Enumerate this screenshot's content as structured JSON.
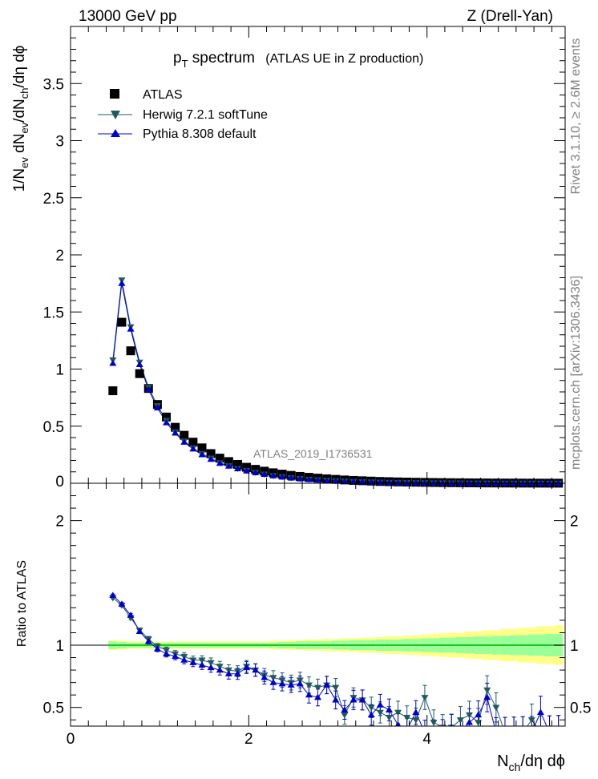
{
  "header": {
    "left": "13000 GeV pp",
    "right": "Z (Drell-Yan)"
  },
  "side_text": {
    "rivet": "Rivet 3.1.10, ≥ 2.6M events",
    "mcplots": "mcplots.cern.ch [arXiv:1306.3436]"
  },
  "chart_data": [
    {
      "type": "scatter",
      "title_main": "p",
      "title_sub": "T",
      "title_rest": " spectrum",
      "title_paren": "(ATLAS UE in Z production)",
      "watermark": "ATLAS_2019_I1736531",
      "ylabel_parts": [
        "1/N",
        "ev",
        " dN",
        "ev",
        "/dN",
        "ch",
        "/dη dϕ"
      ],
      "xlim": [
        0,
        5.55
      ],
      "ylim": [
        0,
        4.0
      ],
      "yticks": [
        0.5,
        1,
        1.5,
        2,
        2.5,
        3,
        3.5
      ],
      "ytick_labels": [
        "0.5",
        "1",
        "1.5",
        "2",
        "2.5",
        "3",
        "3.5"
      ],
      "ylabel_zero": "0",
      "legend": {
        "placement": "top-left",
        "entries": [
          "ATLAS",
          "Herwig 7.2.1 softTune",
          "Pythia 8.308 default"
        ]
      },
      "x": [
        0.475,
        0.575,
        0.675,
        0.775,
        0.875,
        0.975,
        1.075,
        1.175,
        1.275,
        1.375,
        1.475,
        1.575,
        1.675,
        1.775,
        1.875,
        1.975,
        2.075,
        2.175,
        2.275,
        2.375,
        2.475,
        2.575,
        2.675,
        2.775,
        2.875,
        2.975,
        3.075,
        3.175,
        3.275,
        3.375,
        3.475,
        3.575,
        3.675,
        3.775,
        3.875,
        3.975,
        4.075,
        4.175,
        4.275,
        4.375,
        4.475,
        4.575,
        4.675,
        4.775,
        4.875,
        4.975,
        5.075,
        5.175,
        5.275,
        5.375,
        5.475
      ],
      "series": [
        {
          "name": "ATLAS",
          "color": "#000000",
          "marker": "square",
          "values": [
            0.81,
            1.41,
            1.16,
            0.96,
            0.83,
            0.69,
            0.58,
            0.49,
            0.42,
            0.36,
            0.31,
            0.26,
            0.22,
            0.19,
            0.165,
            0.14,
            0.122,
            0.106,
            0.092,
            0.08,
            0.069,
            0.06,
            0.052,
            0.045,
            0.039,
            0.034,
            0.029,
            0.025,
            0.022,
            0.019,
            0.016,
            0.014,
            0.012,
            0.0105,
            0.009,
            0.0078,
            0.0067,
            0.0058,
            0.005,
            0.0043,
            0.0037,
            0.0032,
            0.0027,
            0.0023,
            0.002,
            0.0017,
            0.0015,
            0.0013,
            0.0011,
            0.0009,
            0.0008
          ]
        },
        {
          "name": "Herwig 7.2.1 softTune",
          "color": "#1f5a5e",
          "marker": "triangle-down",
          "values": [
            1.08,
            1.78,
            1.37,
            1.06,
            0.84,
            0.68,
            0.55,
            0.45,
            0.37,
            0.31,
            0.26,
            0.22,
            0.18,
            0.155,
            0.13,
            0.112,
            0.095,
            0.08,
            0.067,
            0.057,
            0.048,
            0.041,
            0.035,
            0.03,
            0.026,
            0.022,
            0.019,
            0.016,
            0.013,
            0.011,
            0.0095,
            0.008,
            0.0068,
            0.0057,
            0.0048,
            0.004,
            0.0034,
            0.0029,
            0.0025,
            0.0021,
            0.0018,
            0.0015,
            0.0013,
            0.0011,
            0.0009,
            0.0008,
            0.0007,
            0.0006,
            0.0005,
            0.0004,
            0.0004
          ]
        },
        {
          "name": "Pythia 8.308 default",
          "color": "#0000cc",
          "marker": "triangle-up",
          "values": [
            1.05,
            1.75,
            1.35,
            1.04,
            0.82,
            0.66,
            0.53,
            0.44,
            0.36,
            0.3,
            0.25,
            0.21,
            0.175,
            0.15,
            0.127,
            0.108,
            0.092,
            0.078,
            0.065,
            0.055,
            0.046,
            0.039,
            0.033,
            0.028,
            0.024,
            0.02,
            0.017,
            0.014,
            0.012,
            0.01,
            0.0085,
            0.0072,
            0.006,
            0.005,
            0.0042,
            0.0036,
            0.003,
            0.0025,
            0.0021,
            0.0018,
            0.0015,
            0.0013,
            0.0011,
            0.0009,
            0.0008,
            0.0007,
            0.0006,
            0.0005,
            0.0004,
            0.0004,
            0.0003
          ]
        }
      ]
    },
    {
      "type": "scatter",
      "ylabel": "Ratio to ATLAS",
      "xlabel_parts": [
        "N",
        "ch",
        "/dη dϕ"
      ],
      "xlim": [
        0,
        5.55
      ],
      "ylim": [
        0.35,
        2.3
      ],
      "xticks": [
        0,
        2,
        4
      ],
      "xtick_labels": [
        "0",
        "2",
        "4"
      ],
      "yticks": [
        0.5,
        1,
        2
      ],
      "ytick_labels": [
        "0.5",
        "1",
        "2"
      ],
      "band_colors": {
        "inner": "#99ff99",
        "outer": "#ffff88",
        "line": "#00aa00"
      },
      "uncertainty_inner": [
        0.03,
        0.025,
        0.02,
        0.02,
        0.02,
        0.02,
        0.02,
        0.02,
        0.02,
        0.02,
        0.02,
        0.02,
        0.02,
        0.02,
        0.02,
        0.02,
        0.02,
        0.02,
        0.02,
        0.025,
        0.025,
        0.03,
        0.03,
        0.03,
        0.03,
        0.035,
        0.035,
        0.04,
        0.04,
        0.04,
        0.045,
        0.045,
        0.045,
        0.05,
        0.05,
        0.055,
        0.055,
        0.06,
        0.06,
        0.065,
        0.065,
        0.07,
        0.07,
        0.075,
        0.075,
        0.08,
        0.08,
        0.085,
        0.085,
        0.09,
        0.09
      ],
      "uncertainty_outer": [
        0.04,
        0.035,
        0.03,
        0.03,
        0.03,
        0.03,
        0.03,
        0.03,
        0.03,
        0.03,
        0.03,
        0.03,
        0.03,
        0.03,
        0.03,
        0.03,
        0.03,
        0.03,
        0.035,
        0.035,
        0.04,
        0.04,
        0.045,
        0.045,
        0.05,
        0.05,
        0.055,
        0.055,
        0.06,
        0.06,
        0.065,
        0.07,
        0.07,
        0.075,
        0.08,
        0.085,
        0.09,
        0.095,
        0.1,
        0.1,
        0.11,
        0.11,
        0.12,
        0.12,
        0.13,
        0.13,
        0.14,
        0.14,
        0.15,
        0.15,
        0.16
      ],
      "series": [
        {
          "name": "Herwig 7.2.1 softTune",
          "color": "#1f5a5e",
          "marker": "triangle-down",
          "values": [
            1.38,
            1.32,
            1.22,
            1.12,
            1.05,
            0.99,
            0.96,
            0.93,
            0.91,
            0.88,
            0.88,
            0.86,
            0.83,
            0.8,
            0.79,
            0.83,
            0.8,
            0.76,
            0.74,
            0.72,
            0.7,
            0.72,
            0.68,
            0.66,
            0.68,
            0.66,
            0.44,
            0.58,
            0.56,
            0.5,
            0.46,
            0.42,
            0.46,
            0.42,
            0.4,
            0.58,
            0.38,
            0.34,
            0.34,
            0.4,
            0.44,
            0.38,
            0.64,
            0.5,
            0.3,
            0.3,
            0.3,
            0.4,
            0.3,
            0.3,
            0.3
          ]
        },
        {
          "name": "Pythia 8.308 default",
          "color": "#0000cc",
          "marker": "triangle-up",
          "values": [
            1.4,
            1.33,
            1.24,
            1.11,
            1.03,
            0.97,
            0.93,
            0.91,
            0.88,
            0.86,
            0.84,
            0.82,
            0.8,
            0.77,
            0.77,
            0.82,
            0.8,
            0.74,
            0.7,
            0.69,
            0.68,
            0.69,
            0.6,
            0.58,
            0.68,
            0.56,
            0.48,
            0.56,
            0.56,
            0.44,
            0.52,
            0.48,
            0.36,
            0.32,
            0.46,
            0.3,
            0.3,
            0.3,
            0.34,
            0.3,
            0.38,
            0.44,
            0.58,
            0.3,
            0.3,
            0.3,
            0.3,
            0.3,
            0.46,
            0.3,
            0.3
          ]
        }
      ]
    }
  ]
}
